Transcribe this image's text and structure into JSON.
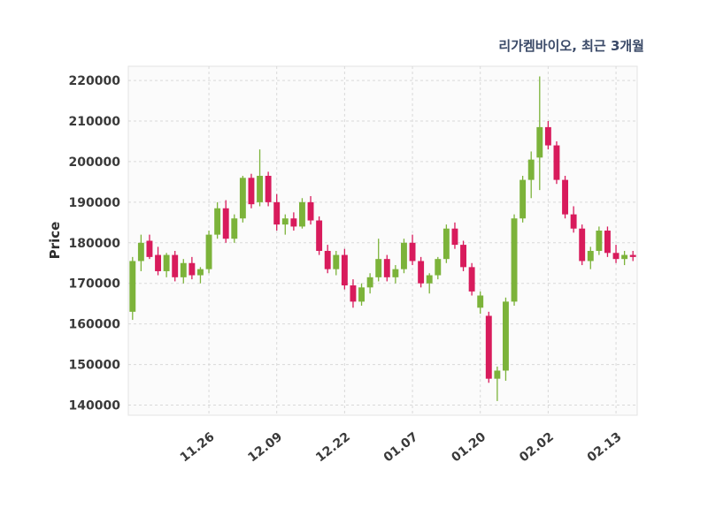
{
  "chart_data": {
    "type": "candlestick",
    "title": "리가켐바이오, 최근 3개월",
    "ylabel": "Price",
    "grid": true,
    "grid_style": "dashed",
    "ylim": [
      137500,
      223500
    ],
    "yticks": [
      140000,
      150000,
      160000,
      170000,
      180000,
      190000,
      200000,
      210000,
      220000
    ],
    "xticks": [
      {
        "index": 9,
        "label": "11.26"
      },
      {
        "index": 17,
        "label": "12.09"
      },
      {
        "index": 25,
        "label": "12.22"
      },
      {
        "index": 33,
        "label": "01.07"
      },
      {
        "index": 41,
        "label": "01.20"
      },
      {
        "index": 49,
        "label": "02.02"
      },
      {
        "index": 57,
        "label": "02.13"
      }
    ],
    "colors": {
      "up": "#7cb33a",
      "down": "#d81b5c",
      "grid": "#d9d9d9",
      "plot_bg": "#fbfbfb",
      "plot_border": "#e3e3e3",
      "tick_text": "#3a3a3a",
      "title_text": "#3b4a68"
    },
    "candles": [
      [
        163000,
        176500,
        161000,
        175500
      ],
      [
        175500,
        182000,
        173000,
        180000
      ],
      [
        180500,
        182000,
        176000,
        176500
      ],
      [
        177000,
        179000,
        172000,
        173000
      ],
      [
        173000,
        177500,
        171500,
        177000
      ],
      [
        177000,
        178000,
        170500,
        171500
      ],
      [
        171500,
        176000,
        170000,
        175000
      ],
      [
        175000,
        176500,
        171000,
        172000
      ],
      [
        172000,
        174000,
        170000,
        173500
      ],
      [
        173500,
        183000,
        172500,
        182000
      ],
      [
        182000,
        190000,
        181000,
        188500
      ],
      [
        188500,
        190500,
        180000,
        181000
      ],
      [
        181000,
        187000,
        180000,
        186000
      ],
      [
        186000,
        196500,
        185000,
        196000
      ],
      [
        196000,
        197000,
        188500,
        189500
      ],
      [
        190000,
        203000,
        189000,
        196500
      ],
      [
        196500,
        197500,
        189000,
        190000
      ],
      [
        190000,
        192000,
        183000,
        184500
      ],
      [
        184500,
        187000,
        182000,
        186000
      ],
      [
        186000,
        187500,
        183000,
        184000
      ],
      [
        184000,
        191000,
        183500,
        190000
      ],
      [
        190000,
        191500,
        184500,
        185500
      ],
      [
        185500,
        186500,
        177000,
        178000
      ],
      [
        178000,
        179500,
        172500,
        173500
      ],
      [
        173500,
        178000,
        172000,
        177000
      ],
      [
        177000,
        178500,
        168500,
        169500
      ],
      [
        169500,
        171000,
        164000,
        165500
      ],
      [
        165500,
        170000,
        164500,
        169000
      ],
      [
        169000,
        172500,
        167500,
        171500
      ],
      [
        171500,
        181000,
        170500,
        176000
      ],
      [
        176000,
        177000,
        170500,
        171500
      ],
      [
        171500,
        174500,
        170000,
        173500
      ],
      [
        173500,
        181000,
        172500,
        180000
      ],
      [
        180000,
        182000,
        174500,
        175500
      ],
      [
        175500,
        176500,
        169000,
        170000
      ],
      [
        170000,
        172500,
        167500,
        172000
      ],
      [
        172000,
        176500,
        171000,
        176000
      ],
      [
        176000,
        184500,
        175000,
        183500
      ],
      [
        183500,
        185000,
        178500,
        179500
      ],
      [
        179500,
        180500,
        173000,
        174000
      ],
      [
        174000,
        175000,
        167000,
        168000
      ],
      [
        164000,
        168000,
        162500,
        167000
      ],
      [
        162000,
        163000,
        145500,
        146500
      ],
      [
        146500,
        149500,
        141000,
        148500
      ],
      [
        148500,
        166500,
        146000,
        165500
      ],
      [
        165500,
        187000,
        164500,
        186000
      ],
      [
        186000,
        196500,
        185000,
        195500
      ],
      [
        195500,
        202500,
        191000,
        200500
      ],
      [
        201000,
        221000,
        193000,
        208500
      ],
      [
        208500,
        210000,
        203000,
        204000
      ],
      [
        204000,
        205000,
        194500,
        195500
      ],
      [
        195500,
        196500,
        186000,
        187000
      ],
      [
        187000,
        189000,
        182500,
        183500
      ],
      [
        183500,
        184500,
        174500,
        175500
      ],
      [
        175500,
        179000,
        173500,
        178000
      ],
      [
        178000,
        184000,
        177000,
        183000
      ],
      [
        183000,
        184000,
        176500,
        177500
      ],
      [
        177500,
        179500,
        175000,
        176000
      ],
      [
        176000,
        178000,
        174500,
        177000
      ],
      [
        177000,
        178000,
        175500,
        176500
      ]
    ]
  }
}
